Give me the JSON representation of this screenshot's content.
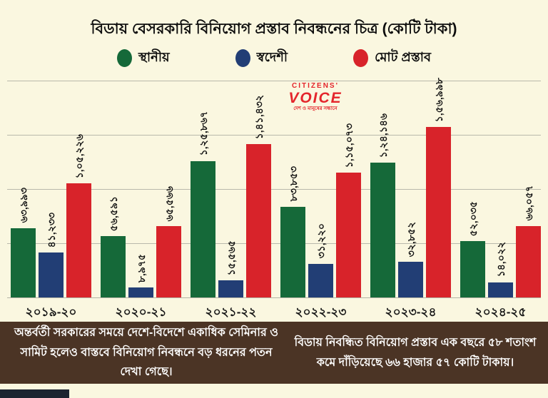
{
  "title": "বিডায় বেসরকারি বিনিয়োগ প্রস্তাব নিবন্ধনের চিত্র (কোটি টাকা)",
  "logo": {
    "line1": "CITIZENS'",
    "line2": "VOICE",
    "tagline": "দেশ ও মানুষের সন্ধানে",
    "color": "#e4252b"
  },
  "chart_data": {
    "type": "bar",
    "title": "বিডায় বেসরকারি বিনিয়োগ প্রস্তাব নিবন্ধনের চিত্র (কোটি টাকা)",
    "unit": "কোটি টাকা",
    "categories": [
      "২০১৯-২০",
      "২০২০-২১",
      "২০২১-২২",
      "২০২২-২৩",
      "২০২৩-২৪",
      "২০২৪-২৫"
    ],
    "series": [
      {
        "name": "স্থানীয়",
        "color": "#156939",
        "values": [
          63993,
          56591,
          125867,
          83853,
          124146,
          52035
        ],
        "labels": [
          "৬৩,৯৯৩",
          "৫৬,৫৯১",
          "১,২৫,৮৬৭",
          "৮৩,৮৫৩",
          "১,২৪,১৪৬",
          "৫২,০৩৫"
        ]
      },
      {
        "name": "স্বদেশী",
        "color": "#223E75",
        "values": [
          41233,
          8975,
          15565,
          31220,
          32852,
          14022
        ],
        "labels": [
          "৪১,২৩৩",
          "৮,৯৭৫",
          "১৫,৫৬৫",
          "৩১,২২০",
          "৩২,৮৫২",
          "১৪,০২২"
        ]
      },
      {
        "name": "মোট প্রস্তাব",
        "color": "#D8232A",
        "values": [
          105226,
          65566,
          141432,
          115073,
          156998,
          66057
        ],
        "labels": [
          "১,০৫,২২৬",
          "৬৫,৫৬৬",
          "১,৪১,৪৩২",
          "১,১৫,০৭৩",
          "১,৫৬,৯৯৮",
          "৬৬,০৫৭"
        ]
      }
    ],
    "ylim": [
      0,
      200000
    ],
    "grid": true,
    "legend_position": "top"
  },
  "captions": {
    "left": "অন্তর্বর্তী সরকারের সময়ে দেশে-বিদেশে একাধিক সেমিনার ও সামিট হলেও বাস্তবে বিনিয়োগ নিবন্ধনে বড় ধরনের পতন দেখা গেছে।",
    "right": "বিডায় নিবন্ধিত বিনিয়োগ প্রস্তাব এক বছরে ৫৮ শতাংশ কমে দাঁড়িয়েছে ৬৬ হাজার ৫৭ কোটি টাকায়।"
  },
  "colors": {
    "background": "#FAF7E0",
    "caption_band": "#4B3425",
    "gridline": "#b9b9ab",
    "footer_strip": "#1c2430"
  }
}
